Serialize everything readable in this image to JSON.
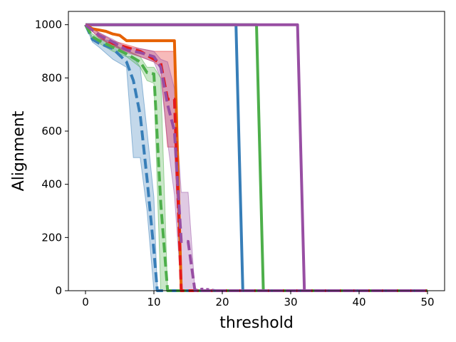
{
  "chart_data": {
    "type": "line",
    "title": "",
    "xlabel": "threshold",
    "ylabel": "Alignment",
    "xlim": [
      -2.5,
      52.5
    ],
    "ylim": [
      0,
      1050
    ],
    "xticks": [
      0,
      10,
      20,
      30,
      40,
      50
    ],
    "yticks": [
      0,
      200,
      400,
      600,
      800,
      1000
    ],
    "grid": false,
    "legend": "none",
    "series": [
      {
        "color": "#377eb8",
        "style": "solid",
        "points": [
          [
            0,
            1000
          ],
          [
            22,
            1000
          ],
          [
            23,
            0
          ],
          [
            50,
            0
          ]
        ]
      },
      {
        "color": "#4daf4a",
        "style": "solid",
        "points": [
          [
            0,
            1000
          ],
          [
            25,
            1000
          ],
          [
            26,
            0
          ],
          [
            50,
            0
          ]
        ]
      },
      {
        "color": "#984ea3",
        "style": "solid",
        "points": [
          [
            0,
            1000
          ],
          [
            31,
            1000
          ],
          [
            32,
            0
          ],
          [
            50,
            0
          ]
        ]
      },
      {
        "color": "#e66101",
        "style": "solid",
        "points": [
          [
            0,
            1000
          ],
          [
            1,
            985
          ],
          [
            3,
            975
          ],
          [
            4,
            965
          ],
          [
            5,
            960
          ],
          [
            6,
            940
          ],
          [
            8,
            940
          ],
          [
            13,
            940
          ],
          [
            14,
            0
          ],
          [
            50,
            0
          ]
        ]
      },
      {
        "color": "#377eb8",
        "style": "dashed",
        "points": [
          [
            0,
            1000
          ],
          [
            1,
            945
          ],
          [
            2,
            930
          ],
          [
            4,
            910
          ],
          [
            6,
            860
          ],
          [
            7,
            790
          ],
          [
            8,
            660
          ],
          [
            9,
            420
          ],
          [
            10,
            150
          ],
          [
            10.5,
            0
          ],
          [
            50,
            0
          ]
        ],
        "band": [
          [
            0,
            1000,
            1000
          ],
          [
            1,
            935,
            955
          ],
          [
            2,
            915,
            945
          ],
          [
            4,
            870,
            940
          ],
          [
            6,
            840,
            880
          ],
          [
            7,
            500,
            880
          ],
          [
            8,
            500,
            840
          ],
          [
            9,
            300,
            600
          ],
          [
            10,
            0,
            350
          ],
          [
            10.5,
            0,
            0
          ]
        ]
      },
      {
        "color": "#4daf4a",
        "style": "dashed",
        "points": [
          [
            0,
            1000
          ],
          [
            1,
            955
          ],
          [
            2,
            940
          ],
          [
            4,
            915
          ],
          [
            6,
            890
          ],
          [
            8,
            860
          ],
          [
            9,
            820
          ],
          [
            10,
            815
          ],
          [
            11,
            330
          ],
          [
            12,
            0
          ],
          [
            50,
            0
          ]
        ],
        "band": [
          [
            0,
            1000,
            1000
          ],
          [
            1,
            945,
            965
          ],
          [
            2,
            930,
            950
          ],
          [
            4,
            900,
            925
          ],
          [
            6,
            880,
            905
          ],
          [
            8,
            840,
            880
          ],
          [
            9,
            790,
            840
          ],
          [
            10,
            780,
            840
          ],
          [
            11,
            0,
            800
          ],
          [
            12,
            0,
            0
          ]
        ]
      },
      {
        "color": "#e41a1c",
        "style": "dashed",
        "points": [
          [
            0,
            1000
          ],
          [
            2,
            960
          ],
          [
            4,
            930
          ],
          [
            6,
            915
          ],
          [
            8,
            900
          ],
          [
            10,
            870
          ],
          [
            11,
            855
          ],
          [
            12,
            720
          ],
          [
            13,
            720
          ],
          [
            14,
            0
          ],
          [
            50,
            0
          ]
        ],
        "band": [
          [
            0,
            1000,
            1000
          ],
          [
            2,
            950,
            970
          ],
          [
            4,
            920,
            940
          ],
          [
            6,
            900,
            925
          ],
          [
            8,
            880,
            910
          ],
          [
            10,
            860,
            900
          ],
          [
            11,
            840,
            900
          ],
          [
            12,
            540,
            900
          ],
          [
            13,
            540,
            900
          ],
          [
            14,
            0,
            0
          ]
        ]
      },
      {
        "color": "#984ea3",
        "style": "dashed",
        "points": [
          [
            0,
            1000
          ],
          [
            2,
            960
          ],
          [
            4,
            935
          ],
          [
            6,
            905
          ],
          [
            8,
            895
          ],
          [
            10,
            880
          ],
          [
            11,
            840
          ],
          [
            12,
            700
          ],
          [
            13,
            600
          ],
          [
            14,
            185
          ],
          [
            15,
            185
          ],
          [
            16,
            0
          ],
          [
            50,
            0
          ]
        ],
        "band": [
          [
            0,
            1000,
            1000
          ],
          [
            2,
            950,
            970
          ],
          [
            4,
            925,
            945
          ],
          [
            6,
            895,
            915
          ],
          [
            8,
            880,
            910
          ],
          [
            10,
            860,
            900
          ],
          [
            11,
            800,
            870
          ],
          [
            12,
            560,
            860
          ],
          [
            13,
            360,
            760
          ],
          [
            14,
            0,
            370
          ],
          [
            15,
            0,
            370
          ],
          [
            16,
            0,
            0
          ]
        ]
      },
      {
        "color": "#984ea3",
        "style": "dotted",
        "points": [
          [
            16,
            0
          ],
          [
            17,
            6
          ],
          [
            18,
            4
          ],
          [
            19,
            0
          ],
          [
            50,
            0
          ]
        ]
      }
    ]
  }
}
